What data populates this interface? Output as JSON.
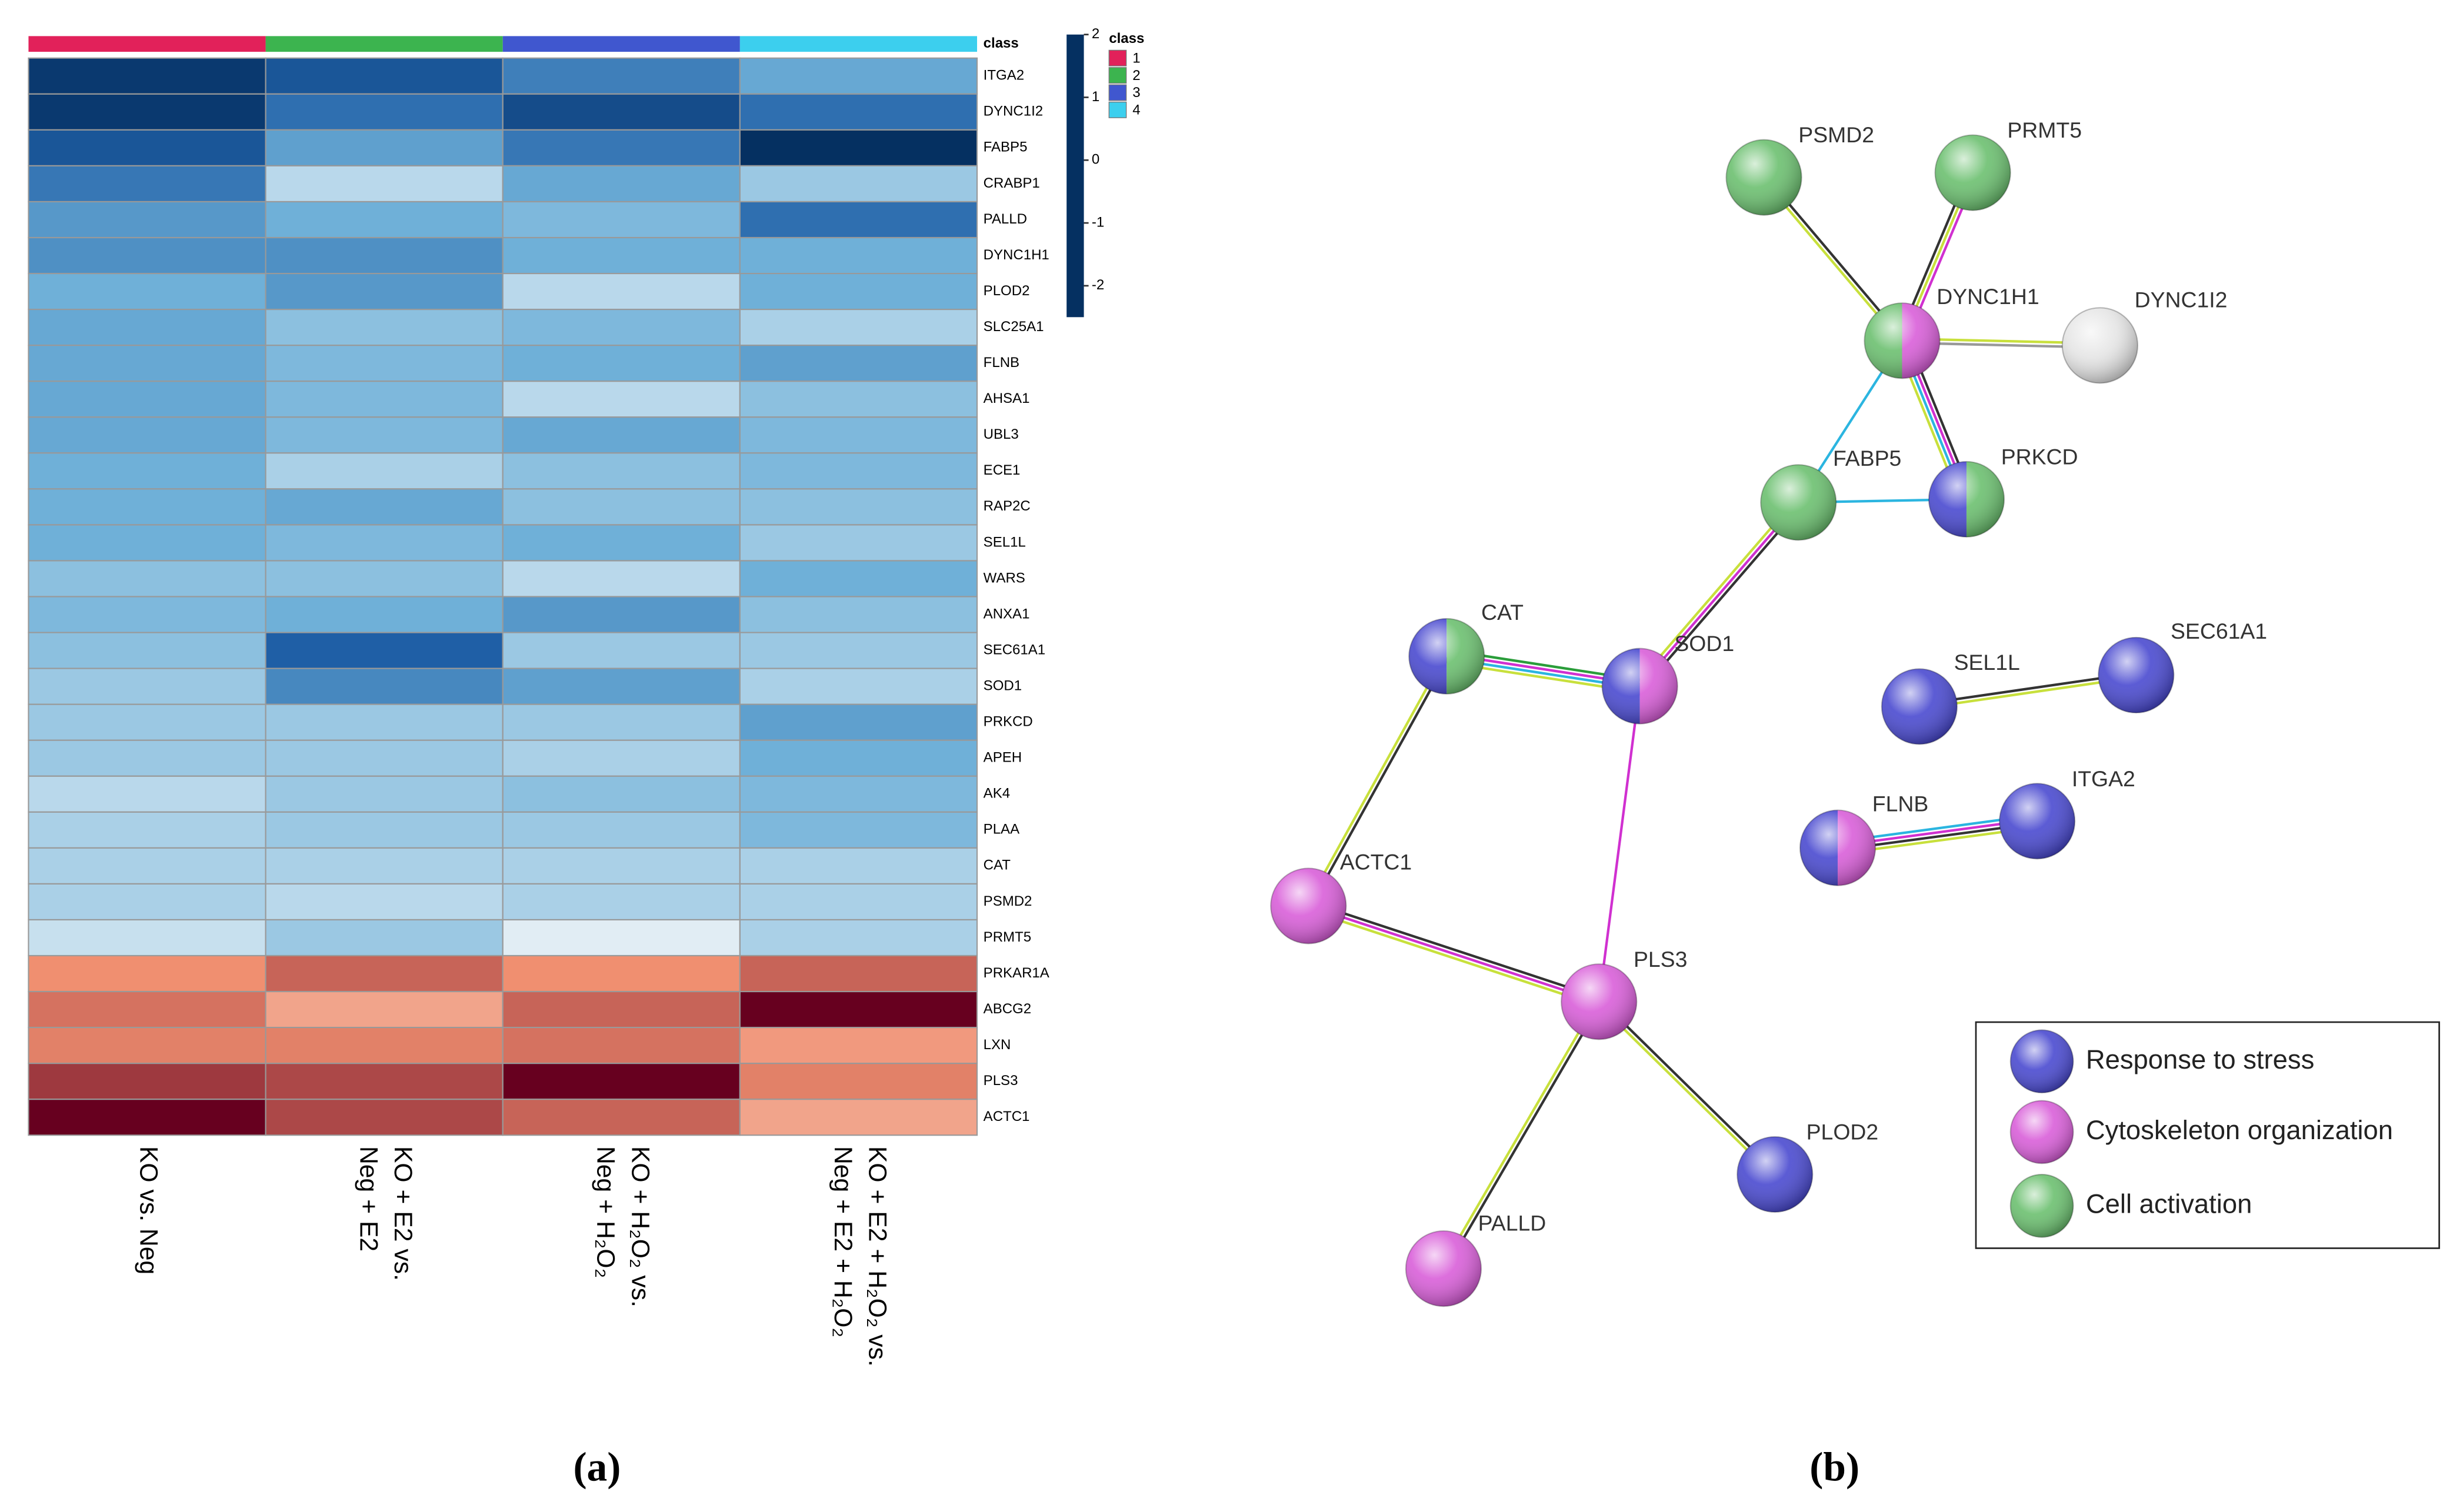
{
  "chart_data": {
    "type": "heatmap",
    "rows": [
      "ITGA2",
      "DYNC1I2",
      "FABP5",
      "CRABP1",
      "PALLD",
      "DYNC1H1",
      "PLOD2",
      "SLC25A1",
      "FLNB",
      "AHSA1",
      "UBL3",
      "ECE1",
      "RAP2C",
      "SEL1L",
      "WARS",
      "ANXA1",
      "SEC61A1",
      "SOD1",
      "PRKCD",
      "APEH",
      "AK4",
      "PLAA",
      "CAT",
      "PSMD2",
      "PRMT5",
      "PRKAR1A",
      "ABCG2",
      "LXN",
      "PLS3",
      "ACTC1"
    ],
    "columns": [
      [
        "KO vs. Neg"
      ],
      [
        "KO + E2 vs.",
        "Neg + E2"
      ],
      [
        "KO + H₂O₂ vs.",
        "Neg + H₂O₂"
      ],
      [
        "KO + E2 + H₂O₂ vs.",
        "Neg + E2 + H₂O₂"
      ]
    ],
    "values": [
      [
        -2.4,
        -2.1,
        -1.6,
        -1.1
      ],
      [
        -2.4,
        -1.8,
        -2.2,
        -1.8
      ],
      [
        -2.1,
        -1.2,
        -1.7,
        -2.5
      ],
      [
        -1.7,
        -0.5,
        -1.1,
        -0.7
      ],
      [
        -1.3,
        -1.0,
        -0.9,
        -1.8
      ],
      [
        -1.4,
        -1.4,
        -1.0,
        -1.0
      ],
      [
        -1.0,
        -1.3,
        -0.5,
        -1.0
      ],
      [
        -1.1,
        -0.8,
        -0.9,
        -0.6
      ],
      [
        -1.1,
        -0.9,
        -1.0,
        -1.2
      ],
      [
        -1.1,
        -0.9,
        -0.5,
        -0.8
      ],
      [
        -1.1,
        -0.9,
        -1.1,
        -0.9
      ],
      [
        -1.0,
        -0.6,
        -0.8,
        -0.9
      ],
      [
        -1.0,
        -1.1,
        -0.8,
        -0.8
      ],
      [
        -1.0,
        -0.9,
        -1.0,
        -0.7
      ],
      [
        -0.8,
        -0.8,
        -0.5,
        -1.0
      ],
      [
        -0.9,
        -1.0,
        -1.3,
        -0.8
      ],
      [
        -0.8,
        -2.0,
        -0.7,
        -0.7
      ],
      [
        -0.7,
        -1.5,
        -1.2,
        -0.6
      ],
      [
        -0.7,
        -0.7,
        -0.7,
        -1.2
      ],
      [
        -0.7,
        -0.7,
        -0.6,
        -1.0
      ],
      [
        -0.5,
        -0.7,
        -0.8,
        -0.9
      ],
      [
        -0.6,
        -0.7,
        -0.7,
        -0.9
      ],
      [
        -0.6,
        -0.6,
        -0.6,
        -0.6
      ],
      [
        -0.6,
        -0.5,
        -0.6,
        -0.6
      ],
      [
        -0.4,
        -0.7,
        -0.2,
        -0.6
      ],
      [
        1.0,
        1.3,
        1.0,
        1.3
      ],
      [
        1.2,
        0.8,
        1.3,
        2.0
      ],
      [
        1.1,
        1.1,
        1.2,
        0.9
      ],
      [
        1.6,
        1.5,
        2.0,
        1.1
      ],
      [
        2.0,
        1.5,
        1.3,
        0.8
      ]
    ],
    "class_label": "class",
    "classes": [
      "1",
      "2",
      "3",
      "4"
    ],
    "class_colors": [
      "#e2215a",
      "#3cb44f",
      "#4057cf",
      "#3ccfee"
    ],
    "colorbar_lim": [
      -2.5,
      2
    ],
    "colorbar_ticks": [
      2,
      1,
      0,
      -1,
      -2
    ],
    "colorscale": [
      [
        -2.5,
        "#053061"
      ],
      [
        -2,
        "#1f5fa6"
      ],
      [
        -1,
        "#6fb0d8"
      ],
      [
        -0.3,
        "#d6e8f2"
      ],
      [
        0,
        "#f7f7f7"
      ],
      [
        1,
        "#f08f70"
      ],
      [
        2,
        "#67001f"
      ]
    ]
  },
  "network": {
    "nodes": [
      {
        "label": "PSMD2",
        "colors": [
          "#6cc070"
        ]
      },
      {
        "label": "PRMT5",
        "colors": [
          "#6cc070"
        ]
      },
      {
        "label": "DYNC1H1",
        "colors": [
          "#6cc070",
          "#d95fd9"
        ]
      },
      {
        "label": "DYNC1I2",
        "colors": [
          "#e6e6e6"
        ]
      },
      {
        "label": "FABP5",
        "colors": [
          "#6cc070"
        ]
      },
      {
        "label": "PRKCD",
        "colors": [
          "#4a4ad0",
          "#6cc070"
        ]
      },
      {
        "label": "CAT",
        "colors": [
          "#4a4ad0",
          "#6cc070"
        ]
      },
      {
        "label": "SOD1",
        "colors": [
          "#4a4ad0",
          "#d95fd9"
        ]
      },
      {
        "label": "SEL1L",
        "colors": [
          "#4a4ad0"
        ]
      },
      {
        "label": "SEC61A1",
        "colors": [
          "#4a4ad0"
        ]
      },
      {
        "label": "FLNB",
        "colors": [
          "#4a4ad0",
          "#d95fd9"
        ]
      },
      {
        "label": "ITGA2",
        "colors": [
          "#4a4ad0"
        ]
      },
      {
        "label": "ACTC1",
        "colors": [
          "#d95fd9"
        ]
      },
      {
        "label": "PLS3",
        "colors": [
          "#d95fd9"
        ]
      },
      {
        "label": "PLOD2",
        "colors": [
          "#4a4ad0"
        ]
      },
      {
        "label": "PALLD",
        "colors": [
          "#d95fd9"
        ]
      }
    ],
    "edges": [
      {
        "source": "PSMD2",
        "target": "DYNC1H1",
        "colors": [
          "#333333",
          "#c8e03c"
        ]
      },
      {
        "source": "PRMT5",
        "target": "DYNC1H1",
        "colors": [
          "#d030d0",
          "#c8e03c",
          "#333333"
        ]
      },
      {
        "source": "DYNC1H1",
        "target": "DYNC1I2",
        "colors": [
          "#c8e03c",
          "#999999"
        ]
      },
      {
        "source": "DYNC1H1",
        "target": "FABP5",
        "colors": [
          "#2bb5e0"
        ]
      },
      {
        "source": "DYNC1H1",
        "target": "PRKCD",
        "colors": [
          "#333333",
          "#d030d0",
          "#2bb5e0",
          "#c8e03c"
        ]
      },
      {
        "source": "FABP5",
        "target": "PRKCD",
        "colors": [
          "#2bb5e0"
        ]
      },
      {
        "source": "FABP5",
        "target": "SOD1",
        "colors": [
          "#333333",
          "#d030d0",
          "#c8e03c"
        ]
      },
      {
        "source": "CAT",
        "target": "SOD1",
        "colors": [
          "#2a9d3a",
          "#d030d0",
          "#2bb5e0",
          "#c8e03c"
        ]
      },
      {
        "source": "CAT",
        "target": "ACTC1",
        "colors": [
          "#333333",
          "#c8e03c"
        ]
      },
      {
        "source": "SOD1",
        "target": "PLS3",
        "colors": [
          "#d030d0"
        ]
      },
      {
        "source": "ACTC1",
        "target": "PLS3",
        "colors": [
          "#333333",
          "#d030d0",
          "#c8e03c"
        ]
      },
      {
        "source": "PLS3",
        "target": "PLOD2",
        "colors": [
          "#333333",
          "#c8e03c"
        ]
      },
      {
        "source": "PLS3",
        "target": "PALLD",
        "colors": [
          "#333333",
          "#c8e03c"
        ]
      },
      {
        "source": "SEL1L",
        "target": "SEC61A1",
        "colors": [
          "#333333",
          "#c8e03c"
        ]
      },
      {
        "source": "FLNB",
        "target": "ITGA2",
        "colors": [
          "#2bb5e0",
          "#d030d0",
          "#333333",
          "#c8e03c"
        ]
      }
    ],
    "legend": [
      {
        "label": "Response to stress",
        "color": "#4a4ad0"
      },
      {
        "label": "Cytoskeleton organization",
        "color": "#d95fd9"
      },
      {
        "label": "Cell activation",
        "color": "#6cc070"
      }
    ]
  },
  "captions": [
    "(a)",
    "(b)"
  ]
}
